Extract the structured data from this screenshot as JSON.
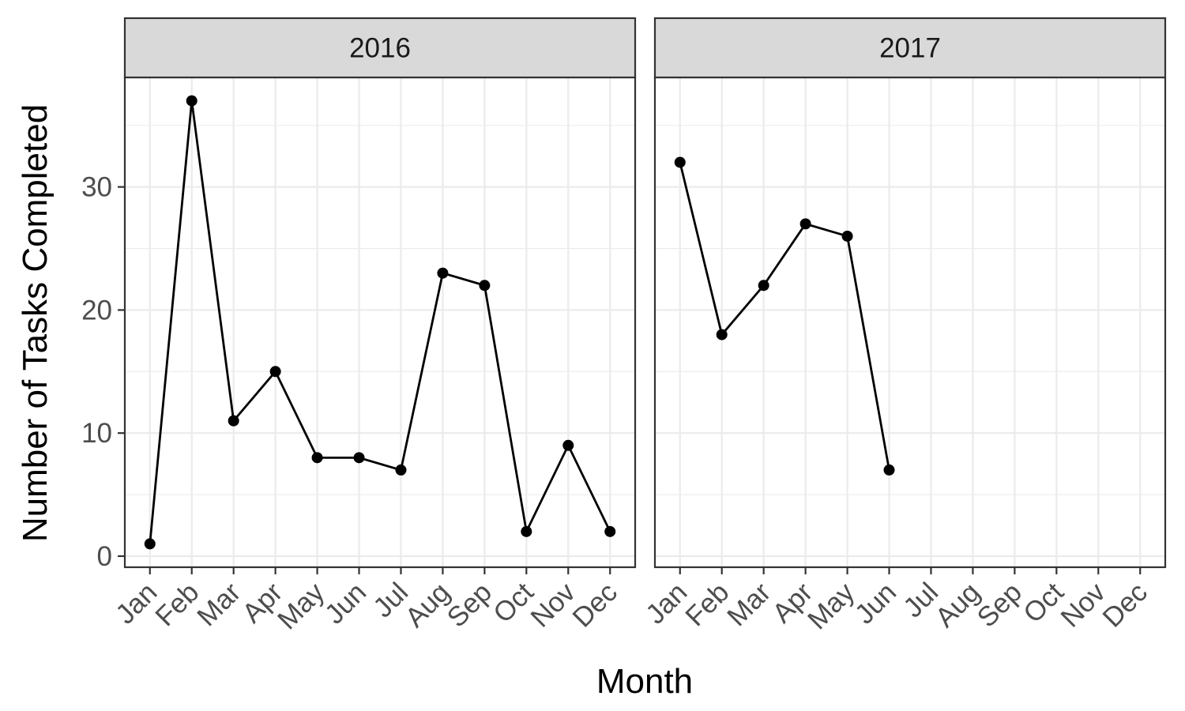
{
  "chart_data": {
    "type": "line",
    "facet_var": "year",
    "xlabel": "Month",
    "ylabel": "Number of Tasks Completed",
    "categories": [
      "Jan",
      "Feb",
      "Mar",
      "Apr",
      "May",
      "Jun",
      "Jul",
      "Aug",
      "Sep",
      "Oct",
      "Nov",
      "Dec"
    ],
    "y_ticks": [
      0,
      10,
      20,
      30
    ],
    "ylim": [
      -0.9,
      38.9
    ],
    "grid": true,
    "colors": {
      "line": "#000000",
      "strip": "#d9d9d9",
      "grid": "#ebebeb",
      "border": "#333333"
    },
    "panels": [
      {
        "label": "2016",
        "values": [
          1,
          37,
          11,
          15,
          8,
          8,
          7,
          23,
          22,
          2,
          9,
          2
        ]
      },
      {
        "label": "2017",
        "values": [
          32,
          18,
          22,
          27,
          26,
          7
        ]
      }
    ]
  }
}
